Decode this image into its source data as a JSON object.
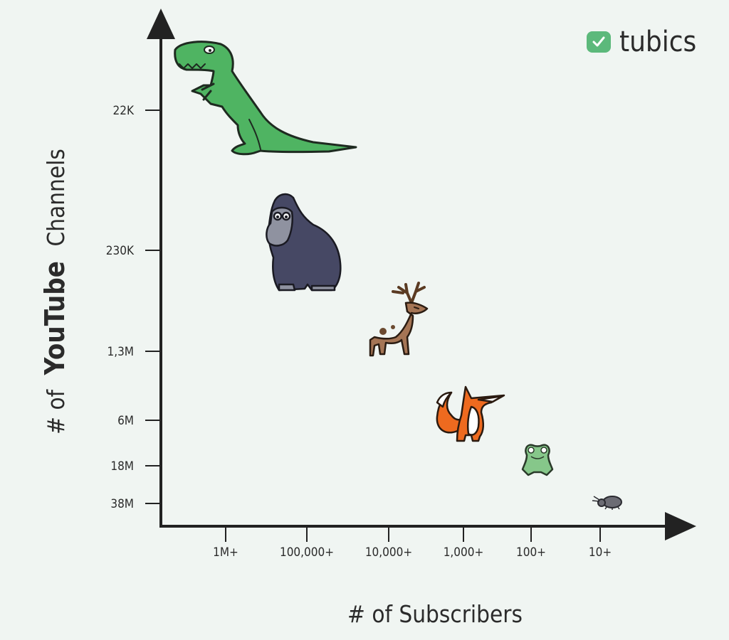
{
  "brand": {
    "name": "tubics",
    "accent": "#5cb97b",
    "icon": "check-badge-icon"
  },
  "chart_data": {
    "type": "scatter",
    "title": "",
    "xlabel": "# of Subscribers",
    "ylabel": {
      "prefix": "# of",
      "brand": "YouTube",
      "suffix": "Channels"
    },
    "x_ticks": [
      "1M+",
      "100,000+",
      "10,000+",
      "1,000+",
      "100+",
      "10+"
    ],
    "y_ticks": [
      "22K",
      "230K",
      "1,3M",
      "6M",
      "18M",
      "38M"
    ],
    "points": [
      {
        "subscribers": "1M+",
        "channels": "22K",
        "animal": "t-rex",
        "color": "#4fb462"
      },
      {
        "subscribers": "100,000+",
        "channels": "230K",
        "animal": "gorilla",
        "color": "#464864"
      },
      {
        "subscribers": "10,000+",
        "channels": "1,3M",
        "animal": "deer",
        "color": "#a57555"
      },
      {
        "subscribers": "1,000+",
        "channels": "6M",
        "animal": "fox",
        "color": "#ee6a1f"
      },
      {
        "subscribers": "100+",
        "channels": "18M",
        "animal": "frog",
        "color": "#86c78a"
      },
      {
        "subscribers": "10+",
        "channels": "38M",
        "animal": "bug",
        "color": "#6c6c74"
      }
    ]
  }
}
